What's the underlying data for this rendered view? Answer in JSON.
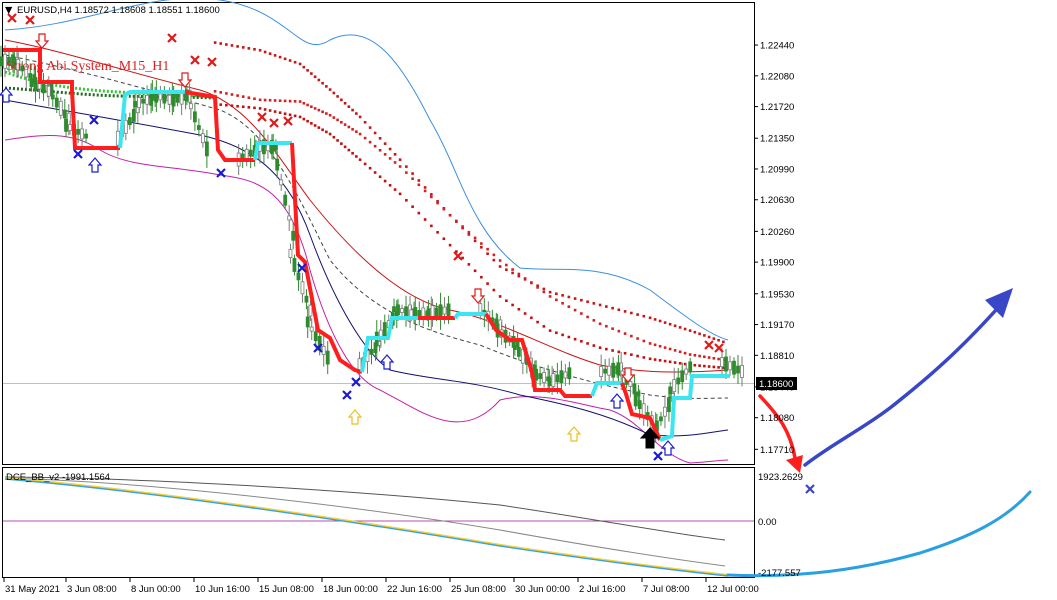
{
  "window": {
    "symbol_info": "EURUSD,H4  1.18572 1.18608 1.18551 1.18600",
    "overlay_label": "Strong Abi System_M15_H1"
  },
  "indicator": {
    "name": "DCE_BB_v2 -1991.1564",
    "top_value": "1923.2629",
    "zero_label": "0.00",
    "bottom_value": "-2177.557"
  },
  "price_axis": {
    "ticks": [
      "1.22440",
      "1.22080",
      "1.21720",
      "1.21350",
      "1.20990",
      "1.20630",
      "1.20260",
      "1.19900",
      "1.19530",
      "1.19170",
      "1.18810",
      "1.18440",
      "1.18080",
      "1.17710"
    ],
    "current_price": "1.18600"
  },
  "time_axis": {
    "ticks": [
      "31 May 2021",
      "3 Jun 08:00",
      "8 Jun 00:00",
      "10 Jun 16:00",
      "15 Jun 08:00",
      "18 Jun 00:00",
      "22 Jun 16:00",
      "25 Jun 08:00",
      "30 Jun 00:00",
      "2 Jul 16:00",
      "7 Jul 08:00",
      "12 Jul 00:00"
    ]
  },
  "colors": {
    "up_candle": "#2e8b2e",
    "down_candle": "#7a7a7a",
    "trend_down": "#ff1e1e",
    "trend_up": "#3be6f0",
    "ma_dark_red": "#c81414",
    "ma_navy": "#101070",
    "band_blue": "#3d8fe0",
    "band_magenta": "#c021a8",
    "green_line": "#32c832",
    "dark_green_line": "#1e6a1e",
    "drawn_blue": "#3a46c8",
    "drawn_cyan": "#2aa0e0",
    "signal_blue": "#1a1ad0",
    "signal_red": "#e01818"
  },
  "chart_data": {
    "type": "candlestick",
    "symbol": "EURUSD",
    "timeframe": "H4",
    "ohlc_last": {
      "open": 1.18572,
      "high": 1.18608,
      "low": 1.18551,
      "close": 1.186
    },
    "ylim": [
      1.1755,
      1.2285
    ],
    "x_range": [
      "2021-05-31",
      "2021-07-12"
    ],
    "close_path": [
      [
        "2021-05-31",
        1.2225
      ],
      [
        "2021-06-01",
        1.22
      ],
      [
        "2021-06-02",
        1.219
      ],
      [
        "2021-06-03",
        1.215
      ],
      [
        "2021-06-04",
        1.2135
      ],
      [
        "2021-06-07",
        1.2175
      ],
      [
        "2021-06-08",
        1.2185
      ],
      [
        "2021-06-09",
        1.218
      ],
      [
        "2021-06-10",
        1.2185
      ],
      [
        "2021-06-11",
        1.211
      ],
      [
        "2021-06-14",
        1.2125
      ],
      [
        "2021-06-15",
        1.2125
      ],
      [
        "2021-06-16",
        1.2
      ],
      [
        "2021-06-17",
        1.192
      ],
      [
        "2021-06-18",
        1.187
      ],
      [
        "2021-06-21",
        1.19
      ],
      [
        "2021-06-22",
        1.1935
      ],
      [
        "2021-06-23",
        1.193
      ],
      [
        "2021-06-24",
        1.193
      ],
      [
        "2021-06-25",
        1.1935
      ],
      [
        "2021-06-28",
        1.191
      ],
      [
        "2021-06-29",
        1.189
      ],
      [
        "2021-06-30",
        1.186
      ],
      [
        "2021-07-01",
        1.185
      ],
      [
        "2021-07-02",
        1.1862
      ],
      [
        "2021-07-05",
        1.1865
      ],
      [
        "2021-07-06",
        1.183
      ],
      [
        "2021-07-07",
        1.179
      ],
      [
        "2021-07-08",
        1.184
      ],
      [
        "2021-07-09",
        1.1873
      ],
      [
        "2021-07-12",
        1.186
      ]
    ],
    "series": [
      {
        "values": [
          1.2247,
          1.2238,
          1.2222,
          1.2192,
          1.216,
          1.211,
          1.2045,
          1.1985,
          1.1955,
          1.194,
          1.1925,
          1.191,
          1.1895
        ]
      },
      {
        "values": [
          1.219,
          1.218,
          1.2178,
          1.2162,
          1.214,
          1.2102,
          1.2045,
          1.1992,
          1.195,
          1.1918,
          1.1895,
          1.1882,
          1.1875
        ]
      },
      {
        "values": [
          1.2175,
          1.217,
          1.216,
          1.214,
          1.211,
          1.207,
          1.201,
          1.195,
          1.191,
          1.189,
          1.1877,
          1.187,
          1.1866
        ]
      }
    ]
  }
}
